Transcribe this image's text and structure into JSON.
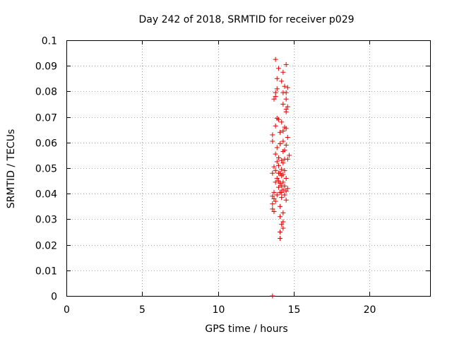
{
  "chart_data": {
    "type": "scatter",
    "title": "Day 242 of 2018, SRMTID for receiver p029",
    "xlabel": "GPS time / hours",
    "ylabel": "SRMTID / TECUs",
    "xlim": [
      0,
      24
    ],
    "ylim": [
      0,
      0.1
    ],
    "xticks": [
      "0",
      "5",
      "10",
      "15",
      "20"
    ],
    "xtick_values": [
      0,
      5,
      10,
      15,
      20
    ],
    "yticks": [
      "0",
      "0.01",
      "0.02",
      "0.03",
      "0.04",
      "0.05",
      "0.06",
      "0.07",
      "0.08",
      "0.09",
      "0.1"
    ],
    "ytick_values": [
      0,
      0.01,
      0.02,
      0.03,
      0.04,
      0.05,
      0.06,
      0.07,
      0.08,
      0.09,
      0.1
    ],
    "grid": true,
    "marker": "+",
    "color": "#e00000",
    "series": [
      {
        "name": "SRMTID",
        "points": [
          [
            13.8,
            0.0925
          ],
          [
            14.5,
            0.0905
          ],
          [
            14.0,
            0.089
          ],
          [
            14.3,
            0.0875
          ],
          [
            13.9,
            0.085
          ],
          [
            14.4,
            0.082
          ],
          [
            14.2,
            0.084
          ],
          [
            14.6,
            0.0815
          ],
          [
            13.8,
            0.0795
          ],
          [
            13.9,
            0.081
          ],
          [
            14.5,
            0.0795
          ],
          [
            13.8,
            0.078
          ],
          [
            14.3,
            0.0795
          ],
          [
            13.7,
            0.077
          ],
          [
            14.5,
            0.077
          ],
          [
            14.3,
            0.075
          ],
          [
            14.6,
            0.074
          ],
          [
            14.5,
            0.072
          ],
          [
            14.5,
            0.073
          ],
          [
            13.9,
            0.0695
          ],
          [
            14.0,
            0.069
          ],
          [
            14.2,
            0.068
          ],
          [
            14.4,
            0.066
          ],
          [
            13.8,
            0.0665
          ],
          [
            14.5,
            0.0655
          ],
          [
            14.3,
            0.0645
          ],
          [
            13.6,
            0.063
          ],
          [
            14.1,
            0.064
          ],
          [
            14.6,
            0.062
          ],
          [
            13.6,
            0.0605
          ],
          [
            14.3,
            0.0605
          ],
          [
            14.5,
            0.059
          ],
          [
            13.9,
            0.058
          ],
          [
            14.1,
            0.0595
          ],
          [
            14.4,
            0.057
          ],
          [
            14.3,
            0.0565
          ],
          [
            14.7,
            0.055
          ],
          [
            13.8,
            0.0555
          ],
          [
            14.0,
            0.054
          ],
          [
            14.2,
            0.053
          ],
          [
            14.4,
            0.0535
          ],
          [
            13.9,
            0.0525
          ],
          [
            14.6,
            0.0535
          ],
          [
            14.3,
            0.052
          ],
          [
            14.0,
            0.051
          ],
          [
            13.7,
            0.0505
          ],
          [
            14.2,
            0.0495
          ],
          [
            14.4,
            0.049
          ],
          [
            13.8,
            0.049
          ],
          [
            14.0,
            0.048
          ],
          [
            14.1,
            0.048
          ],
          [
            13.6,
            0.048
          ],
          [
            14.3,
            0.0475
          ],
          [
            14.2,
            0.047
          ],
          [
            14.5,
            0.046
          ],
          [
            13.9,
            0.046
          ],
          [
            14.0,
            0.045
          ],
          [
            14.3,
            0.0445
          ],
          [
            14.1,
            0.044
          ],
          [
            13.8,
            0.0445
          ],
          [
            14.4,
            0.043
          ],
          [
            14.2,
            0.043
          ],
          [
            14.0,
            0.0425
          ],
          [
            14.6,
            0.042
          ],
          [
            14.3,
            0.0415
          ],
          [
            14.5,
            0.041
          ],
          [
            13.7,
            0.0405
          ],
          [
            14.1,
            0.0405
          ],
          [
            14.2,
            0.0405
          ],
          [
            13.6,
            0.039
          ],
          [
            13.9,
            0.0395
          ],
          [
            14.4,
            0.0395
          ],
          [
            13.7,
            0.038
          ],
          [
            14.2,
            0.0385
          ],
          [
            14.5,
            0.0375
          ],
          [
            13.8,
            0.037
          ],
          [
            13.6,
            0.036
          ],
          [
            14.1,
            0.035
          ],
          [
            13.6,
            0.034
          ],
          [
            13.7,
            0.033
          ],
          [
            14.3,
            0.0325
          ],
          [
            14.1,
            0.031
          ],
          [
            14.3,
            0.029
          ],
          [
            14.2,
            0.028
          ],
          [
            14.3,
            0.0265
          ],
          [
            14.1,
            0.025
          ],
          [
            14.1,
            0.0225
          ],
          [
            13.6,
            0.0
          ]
        ]
      }
    ]
  }
}
